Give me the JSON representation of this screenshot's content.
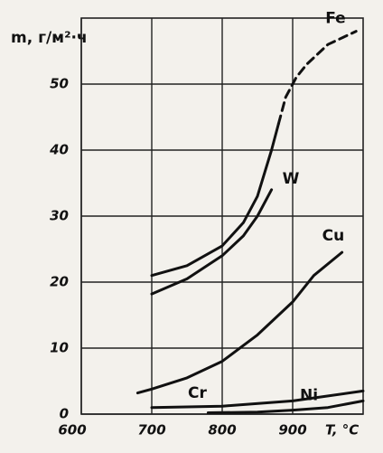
{
  "chart_data": {
    "type": "line",
    "y_label": "m, г/м²·ч",
    "x_label": "T, °C",
    "xlim": [
      600,
      1000
    ],
    "xticks": [
      600,
      700,
      800,
      900
    ],
    "ylim": [
      0,
      60
    ],
    "yticks": [
      0,
      10,
      20,
      30,
      40,
      50
    ],
    "grid": true,
    "series": [
      {
        "name": "Fe",
        "color": "#111111",
        "dash_from_x": 880,
        "x": [
          700,
          750,
          800,
          830,
          850,
          870,
          880,
          890,
          905,
          920,
          950,
          990
        ],
        "values": [
          21,
          22.5,
          25.5,
          29,
          33,
          40,
          44,
          48,
          51,
          53,
          56,
          58
        ]
      },
      {
        "name": "W",
        "color": "#111111",
        "x": [
          700,
          750,
          800,
          830,
          850,
          870
        ],
        "values": [
          18.2,
          20.5,
          24,
          27,
          30,
          34
        ]
      },
      {
        "name": "Cu",
        "color": "#111111",
        "x": [
          680,
          700,
          750,
          800,
          850,
          900,
          930,
          970
        ],
        "values": [
          3.2,
          3.8,
          5.5,
          8,
          12,
          17,
          21,
          24.5
        ]
      },
      {
        "name": "Cr",
        "color": "#111111",
        "x": [
          700,
          800,
          900,
          1000
        ],
        "values": [
          1.0,
          1.2,
          2.0,
          3.5
        ]
      },
      {
        "name": "Ni",
        "color": "#111111",
        "x": [
          780,
          850,
          900,
          950,
          1000
        ],
        "values": [
          0.2,
          0.3,
          0.6,
          1.0,
          2.0
        ]
      }
    ]
  }
}
